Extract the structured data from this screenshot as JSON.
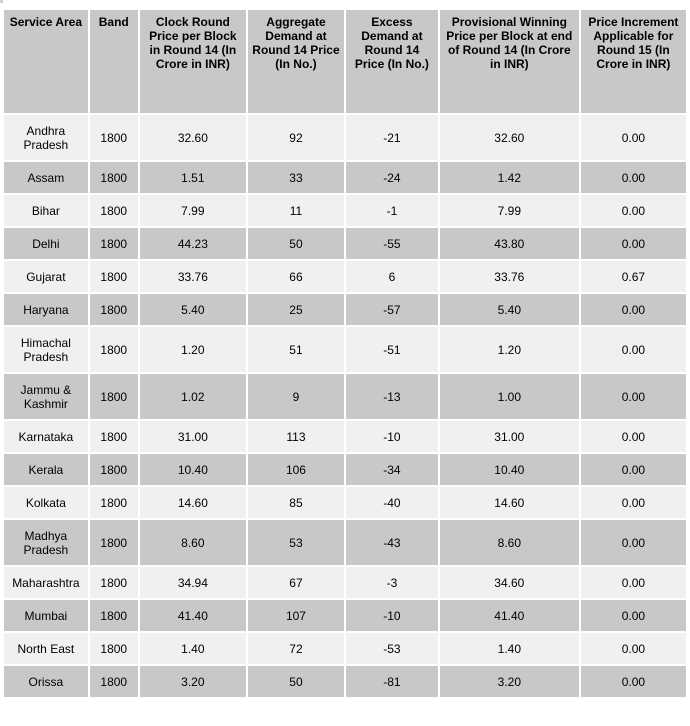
{
  "table": {
    "headers": [
      "Service Area",
      "Band",
      "Clock Round Price per Block in Round 14 (In Crore in INR)",
      "Aggregate Demand at Round 14 Price (In No.)",
      "Excess Demand at Round 14 Price (In No.)",
      "Provisional Winning Price per Block at end of Round 14 (In Crore in INR)",
      "Price Increment Applicable for Round 15 (In Crore in INR)"
    ],
    "rows": [
      [
        "Andhra Pradesh",
        "1800",
        "32.60",
        "92",
        "-21",
        "32.60",
        "0.00"
      ],
      [
        "Assam",
        "1800",
        "1.51",
        "33",
        "-24",
        "1.42",
        "0.00"
      ],
      [
        "Bihar",
        "1800",
        "7.99",
        "11",
        "-1",
        "7.99",
        "0.00"
      ],
      [
        "Delhi",
        "1800",
        "44.23",
        "50",
        "-55",
        "43.80",
        "0.00"
      ],
      [
        "Gujarat",
        "1800",
        "33.76",
        "66",
        "6",
        "33.76",
        "0.67"
      ],
      [
        "Haryana",
        "1800",
        "5.40",
        "25",
        "-57",
        "5.40",
        "0.00"
      ],
      [
        "Himachal Pradesh",
        "1800",
        "1.20",
        "51",
        "-51",
        "1.20",
        "0.00"
      ],
      [
        "Jammu & Kashmir",
        "1800",
        "1.02",
        "9",
        "-13",
        "1.00",
        "0.00"
      ],
      [
        "Karnataka",
        "1800",
        "31.00",
        "113",
        "-10",
        "31.00",
        "0.00"
      ],
      [
        "Kerala",
        "1800",
        "10.40",
        "106",
        "-34",
        "10.40",
        "0.00"
      ],
      [
        "Kolkata",
        "1800",
        "14.60",
        "85",
        "-40",
        "14.60",
        "0.00"
      ],
      [
        "Madhya Pradesh",
        "1800",
        "8.60",
        "53",
        "-43",
        "8.60",
        "0.00"
      ],
      [
        "Maharashtra",
        "1800",
        "34.94",
        "67",
        "-3",
        "34.60",
        "0.00"
      ],
      [
        "Mumbai",
        "1800",
        "41.40",
        "107",
        "-10",
        "41.40",
        "0.00"
      ],
      [
        "North East",
        "1800",
        "1.40",
        "72",
        "-53",
        "1.40",
        "0.00"
      ],
      [
        "Orissa",
        "1800",
        "3.20",
        "50",
        "-81",
        "3.20",
        "0.00"
      ]
    ]
  },
  "colors": {
    "header_bg": "#c8c8c8",
    "row_light": "#f0f0f0",
    "row_dark": "#c8c8c8"
  }
}
